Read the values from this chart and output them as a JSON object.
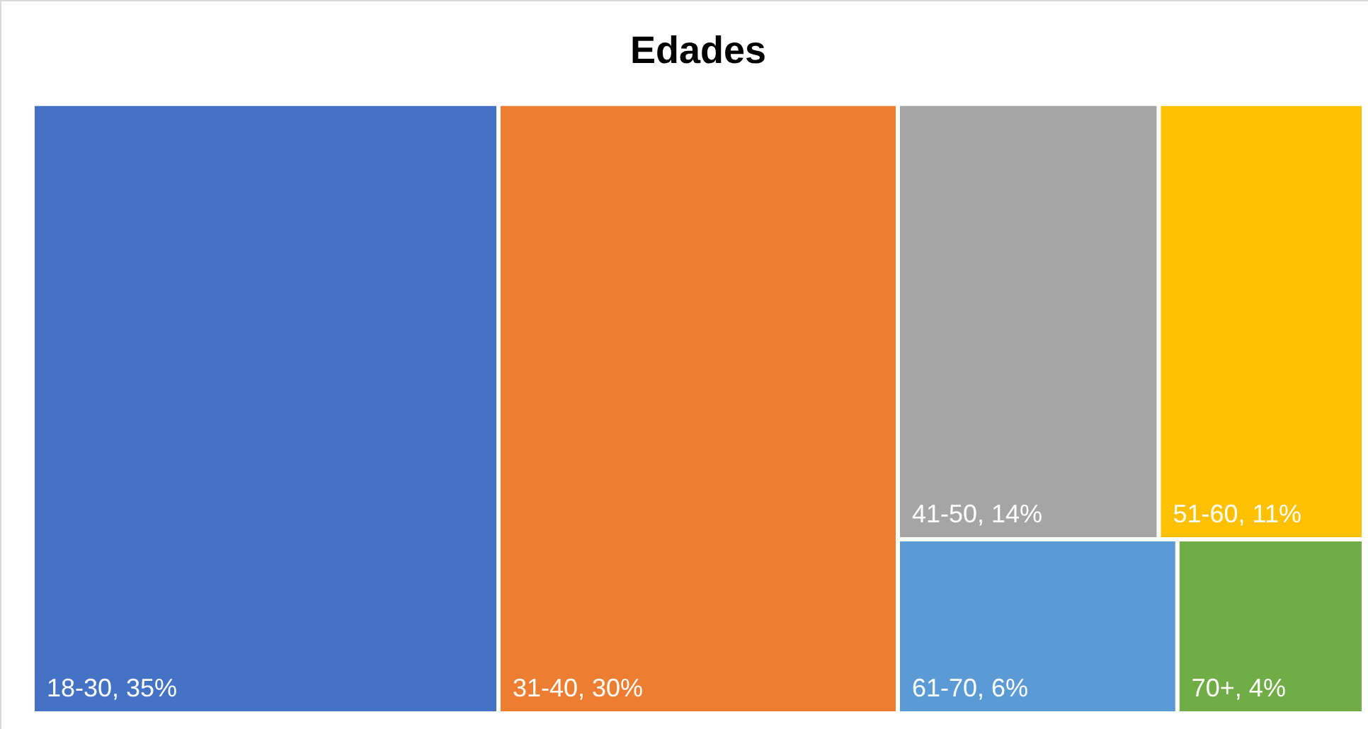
{
  "chart_data": {
    "type": "other",
    "title": "Edades",
    "categories": [
      "18-30",
      "31-40",
      "41-50",
      "51-60",
      "61-70",
      "70+"
    ],
    "values": [
      35,
      30,
      14,
      11,
      6,
      4
    ],
    "value_labels": [
      ", 35%",
      ", 30%",
      ", 14%",
      ", 11%",
      ", 6%",
      ", 4%"
    ],
    "colors": [
      "#4472c4",
      "#ed7d31",
      "#a5a5a5",
      "#ffc000",
      "#5b9bd5",
      "#70ad47"
    ]
  }
}
